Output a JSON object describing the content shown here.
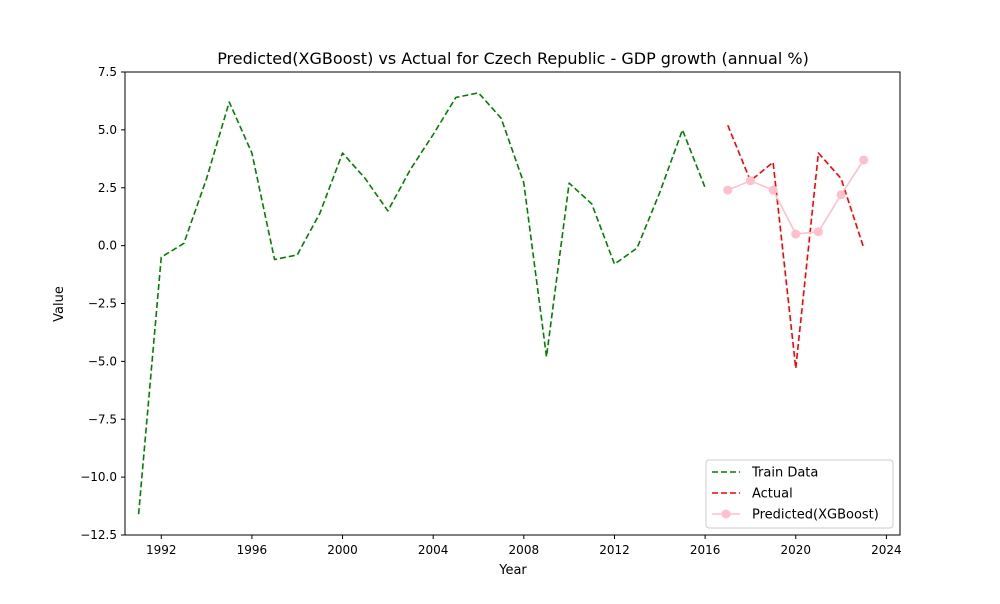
{
  "chart_data": {
    "type": "line",
    "title": "Predicted(XGBoost) vs Actual for Czech Republic - GDP growth (annual %)",
    "xlabel": "Year",
    "ylabel": "Value",
    "xlim": [
      1990.4,
      2024.6
    ],
    "ylim": [
      -12.5,
      7.5
    ],
    "x_ticks": [
      1992,
      1996,
      2000,
      2004,
      2008,
      2012,
      2016,
      2020,
      2024
    ],
    "y_ticks": [
      -12.5,
      -10.0,
      -7.5,
      -5.0,
      -2.5,
      0.0,
      2.5,
      5.0,
      7.5
    ],
    "y_tick_labels": [
      "−12.5",
      "−10.0",
      "−7.5",
      "−5.0",
      "−2.5",
      "0.0",
      "2.5",
      "5.0",
      "7.5"
    ],
    "grid": false,
    "legend_position": "lower-right",
    "series": [
      {
        "name": "Train Data",
        "color": "#008000",
        "style": "dashed",
        "marker": "none",
        "x": [
          1991,
          1992,
          1993,
          1994,
          1995,
          1996,
          1997,
          1998,
          1999,
          2000,
          2001,
          2002,
          2003,
          2004,
          2005,
          2006,
          2007,
          2008,
          2009,
          2010,
          2011,
          2012,
          2013,
          2014,
          2015,
          2016
        ],
        "y": [
          -11.6,
          -0.5,
          0.1,
          2.9,
          6.2,
          4.0,
          -0.6,
          -0.4,
          1.4,
          4.0,
          2.9,
          1.5,
          3.3,
          4.8,
          6.4,
          6.6,
          5.5,
          2.7,
          -4.8,
          2.7,
          1.8,
          -0.8,
          -0.1,
          2.3,
          5.0,
          2.5
        ]
      },
      {
        "name": "Actual",
        "color": "#ff0000",
        "style": "dashed",
        "marker": "none",
        "x": [
          2017,
          2018,
          2019,
          2020,
          2021,
          2022,
          2023
        ],
        "y": [
          5.2,
          2.8,
          3.6,
          -5.3,
          4.0,
          2.9,
          -0.1
        ]
      },
      {
        "name": "Predicted(XGBoost)",
        "color": "#ffc0cb",
        "style": "solid",
        "marker": "circle",
        "x": [
          2017,
          2018,
          2019,
          2020,
          2021,
          2022,
          2023
        ],
        "y": [
          2.4,
          2.8,
          2.4,
          0.5,
          0.6,
          2.2,
          3.7
        ]
      }
    ]
  }
}
